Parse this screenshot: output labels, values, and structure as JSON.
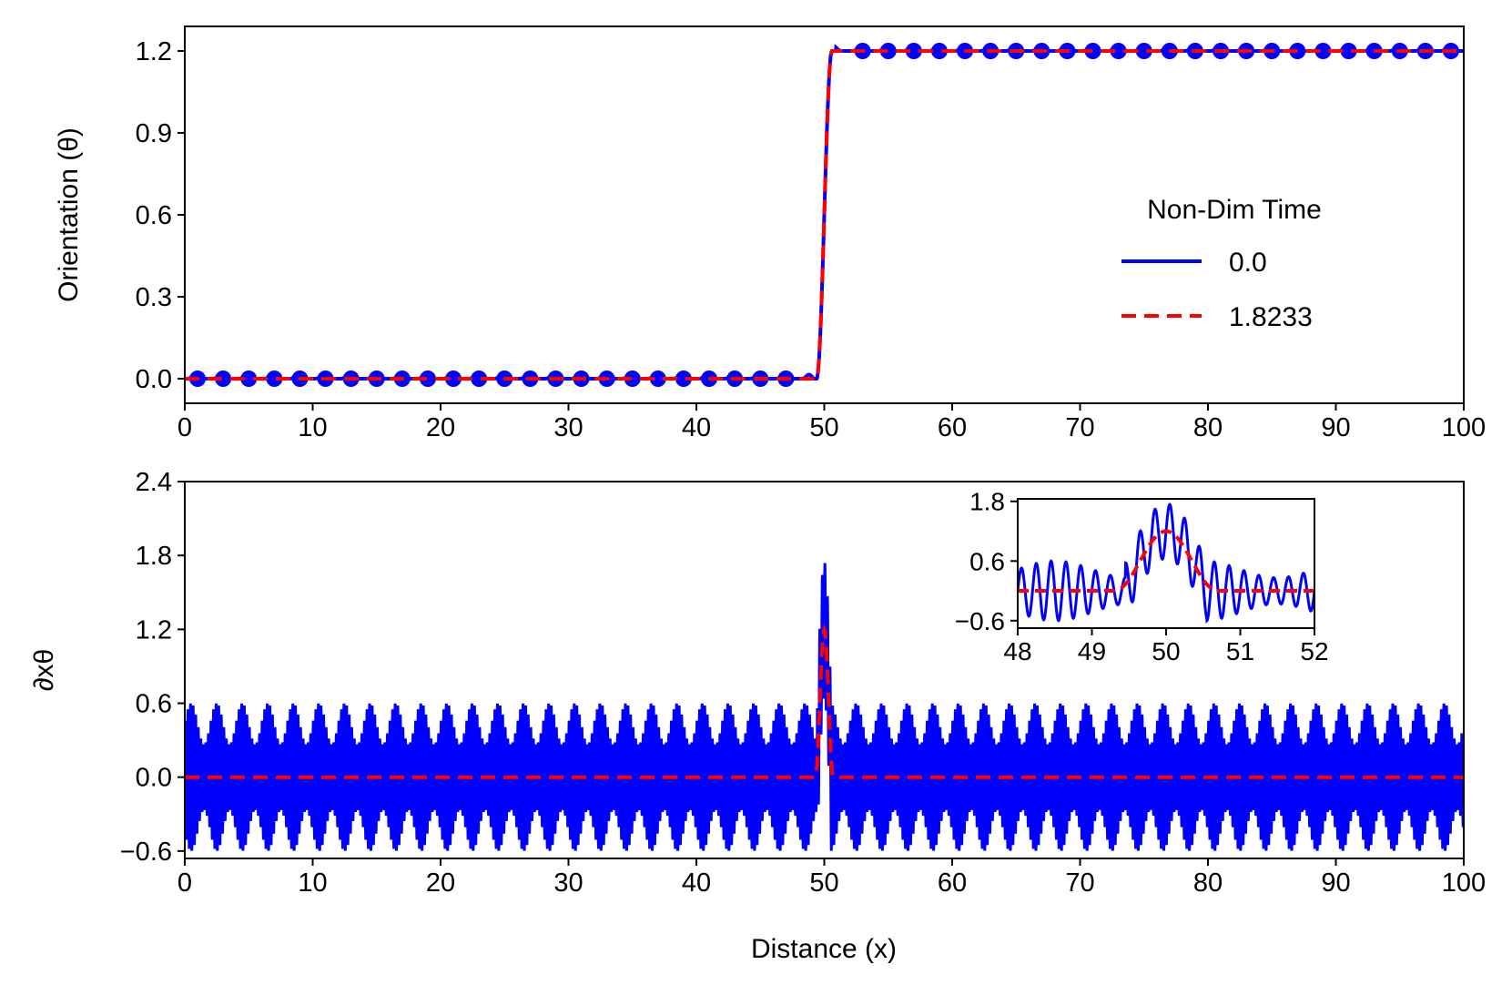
{
  "colors": {
    "initial": "#0000ff",
    "final": "#ff0000",
    "axis": "#000000",
    "background": "#ffffff"
  },
  "chart_data": [
    {
      "id": "top",
      "type": "line",
      "title": "",
      "xlabel": "",
      "ylabel": "Orientation (θ)",
      "xlim": [
        0,
        100
      ],
      "ylim": [
        -0.09,
        1.29
      ],
      "xticks": [
        0,
        10,
        20,
        30,
        40,
        50,
        60,
        70,
        80,
        90,
        100
      ],
      "xtick_labels": [
        "0",
        "10",
        "20",
        "30",
        "40",
        "50",
        "60",
        "70",
        "80",
        "90",
        "100"
      ],
      "yticks": [
        0.0,
        0.3,
        0.6,
        0.9,
        1.2
      ],
      "ytick_labels": [
        "0.0",
        "0.3",
        "0.6",
        "0.9",
        "1.2"
      ],
      "legend": {
        "title": "Non-Dim Time",
        "entries": [
          "0.0",
          "1.8233"
        ],
        "placement": "center-right"
      },
      "series": [
        {
          "name": "0.0",
          "style": "solid",
          "description": "step from 0.0 to 1.2 near x=50 with small periodic bumps",
          "base_before": 0.0,
          "base_after": 1.2,
          "step_x": [
            49.4,
            50.6
          ],
          "bump_amplitude": 0.015,
          "bump_period": 2.0
        },
        {
          "name": "1.8233",
          "style": "dashed",
          "base_before": 0.0,
          "base_after": 1.2,
          "step_x": [
            49.4,
            50.6
          ]
        }
      ]
    },
    {
      "id": "bottom",
      "type": "line",
      "title": "",
      "xlabel": "Distance (x)",
      "ylabel": "∂xθ",
      "xlim": [
        0,
        100
      ],
      "ylim": [
        -0.66,
        2.4
      ],
      "xticks": [
        0,
        10,
        20,
        30,
        40,
        50,
        60,
        70,
        80,
        90,
        100
      ],
      "xtick_labels": [
        "0",
        "10",
        "20",
        "30",
        "40",
        "50",
        "60",
        "70",
        "80",
        "90",
        "100"
      ],
      "yticks": [
        -0.6,
        0.0,
        0.6,
        1.2,
        1.8,
        2.4
      ],
      "ytick_labels": [
        "−0.6",
        "0.0",
        "0.6",
        "1.2",
        "1.8",
        "2.4"
      ],
      "series": [
        {
          "name": "0.0",
          "style": "solid",
          "description": "rapid oscillation about 0 with amplitude ~0.6, peak ~1.8 near x=50",
          "oscillation_amplitude": 0.6,
          "peak": 1.8
        },
        {
          "name": "1.8233",
          "style": "dashed",
          "description": "flat at 0 except bump to ~1.2 at x≈49.5–50.5",
          "peak": 1.2
        }
      ],
      "inset": {
        "xlim": [
          48,
          52
        ],
        "ylim": [
          -0.75,
          1.85
        ],
        "xticks": [
          48,
          49,
          50,
          51,
          52
        ],
        "xtick_labels": [
          "48",
          "49",
          "50",
          "51",
          "52"
        ],
        "yticks": [
          -0.6,
          0.6,
          1.8
        ],
        "ytick_labels": [
          "−0.6",
          "0.6",
          "1.8"
        ]
      }
    }
  ]
}
